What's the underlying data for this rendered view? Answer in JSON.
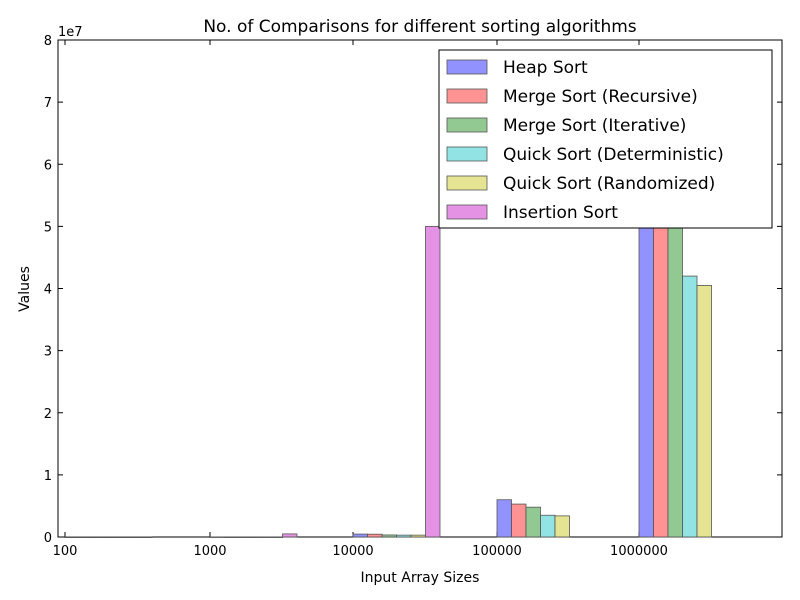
{
  "chart_data": {
    "type": "bar",
    "title": "No. of Comparisons for different sorting algorithms",
    "xlabel": "Input Array Sizes",
    "ylabel": "Values",
    "y_scale_label": "1e7",
    "categories": [
      "100",
      "1000",
      "10000",
      "100000",
      "1000000"
    ],
    "y_ticks": [
      "0",
      "1",
      "2",
      "3",
      "4",
      "5",
      "6",
      "7",
      "8"
    ],
    "ylim": [
      0,
      80000000
    ],
    "legend_position": "top-right",
    "series": [
      {
        "name": "Heap Sort",
        "color": "#7f7fff",
        "values": [
          1000,
          17000,
          470000,
          6000000,
          50000000
        ]
      },
      {
        "name": "Merge Sort (Recursive)",
        "color": "#ff7f7f",
        "values": [
          500,
          8700,
          450000,
          5300000,
          50000000
        ]
      },
      {
        "name": "Merge Sort (Iterative)",
        "color": "#7fbf7f",
        "values": [
          500,
          8700,
          330000,
          4800000,
          50000000
        ]
      },
      {
        "name": "Quick Sort (Deterministic)",
        "color": "#7fdfdf",
        "values": [
          700,
          11000,
          300000,
          3500000,
          42000000
        ]
      },
      {
        "name": "Quick Sort (Randomized)",
        "color": "#dfdf7f",
        "values": [
          700,
          11000,
          300000,
          3400000,
          40500000
        ]
      },
      {
        "name": "Insertion Sort",
        "color": "#df7fdf",
        "values": [
          2500,
          500000,
          50000000,
          0,
          0
        ]
      }
    ]
  }
}
